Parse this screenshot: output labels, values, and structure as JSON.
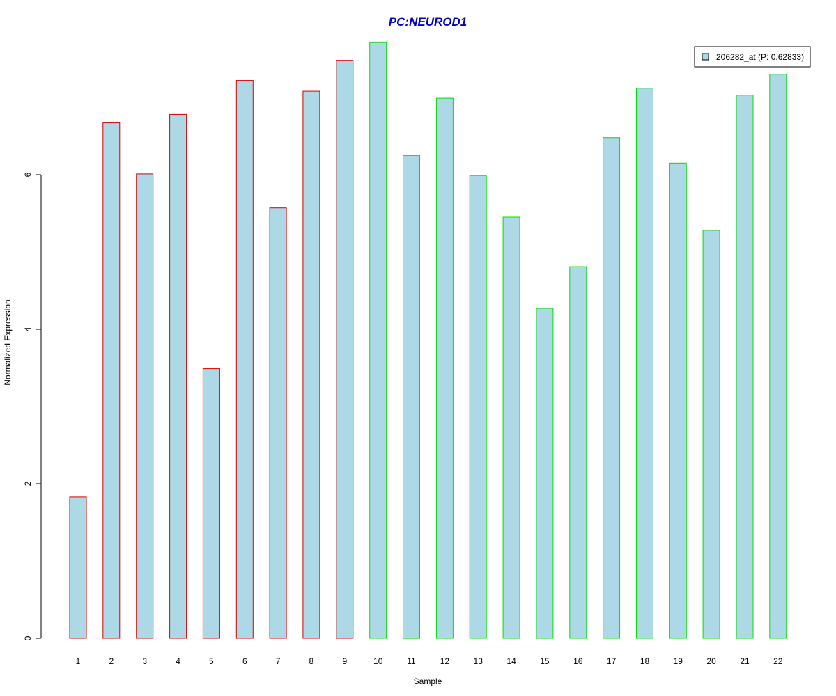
{
  "chart_data": {
    "type": "bar",
    "title": "PC:NEUROD1",
    "title_color": "#0000cd",
    "xlabel": "Sample",
    "ylabel": "Normalized Expression",
    "categories": [
      "1",
      "2",
      "3",
      "4",
      "5",
      "6",
      "7",
      "8",
      "9",
      "10",
      "11",
      "12",
      "13",
      "14",
      "15",
      "16",
      "17",
      "18",
      "19",
      "20",
      "21",
      "22"
    ],
    "series": [
      {
        "name": "206282_at (P: 0.62833)",
        "values": [
          1.83,
          6.67,
          6.01,
          6.78,
          3.49,
          7.22,
          5.57,
          7.08,
          7.48,
          7.71,
          6.25,
          6.99,
          5.99,
          5.45,
          4.27,
          4.81,
          6.48,
          7.12,
          6.15,
          5.28,
          7.03,
          7.3
        ]
      }
    ],
    "bar_fill": "#add8e6",
    "group_border_colors": [
      "#d40000",
      "#d40000",
      "#d40000",
      "#d40000",
      "#d40000",
      "#d40000",
      "#d40000",
      "#d40000",
      "#d40000",
      "#00e000",
      "#00e000",
      "#00e000",
      "#00e000",
      "#00e000",
      "#00e000",
      "#00e000",
      "#00e000",
      "#00e000",
      "#00e000",
      "#00e000",
      "#00e000",
      "#00e000"
    ],
    "ylim": [
      0,
      7.71
    ],
    "yticks": [
      "0",
      "2",
      "4",
      "6"
    ],
    "grid": false,
    "legend_position": "top-right"
  }
}
